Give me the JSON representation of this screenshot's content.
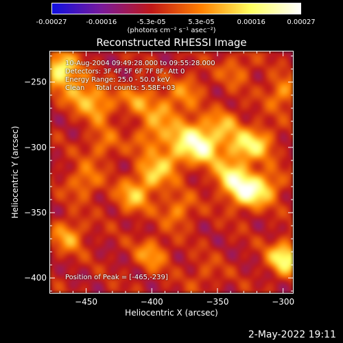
{
  "chart_data": {
    "type": "heatmap",
    "title": "Reconstructed RHESSI Image",
    "xlabel": "Heliocentric X (arcsec)",
    "ylabel": "Heliocentric Y (arcsec)",
    "xlim": [
      -478,
      -292
    ],
    "ylim": [
      -412,
      -226
    ],
    "xticks": [
      "-450",
      "-400",
      "-350",
      "-300"
    ],
    "yticks": [
      "-250",
      "-300",
      "-350",
      "-400"
    ],
    "colorbar": {
      "colormap": "hot",
      "range": [
        -0.00027,
        0.00027
      ],
      "tick_labels": [
        "-0.00027",
        "-0.00016",
        "-5.3e-05",
        "5.3e-05",
        "0.00016",
        "0.00027"
      ],
      "units": "(photons cm⁻² s⁻¹ asec⁻²)",
      "colors": [
        "#1010e0",
        "#7a1a9a",
        "#c01818",
        "#ff8000",
        "#ffff60",
        "#ffffff"
      ]
    },
    "peak": [
      -465,
      -239
    ],
    "sources": [
      {
        "x": -470,
        "y": -240,
        "value": 0.00025
      },
      {
        "x": -455,
        "y": -258,
        "value": 0.00014
      },
      {
        "x": -440,
        "y": -268,
        "value": 0.00014
      },
      {
        "x": -410,
        "y": -262,
        "value": 0.00012
      },
      {
        "x": -390,
        "y": -272,
        "value": 0.00013
      },
      {
        "x": -372,
        "y": -290,
        "value": 0.00018
      },
      {
        "x": -360,
        "y": -300,
        "value": 0.00024
      },
      {
        "x": -345,
        "y": -282,
        "value": 0.00013
      },
      {
        "x": -332,
        "y": -300,
        "value": 0.00014
      },
      {
        "x": -318,
        "y": -296,
        "value": 0.00015
      },
      {
        "x": -340,
        "y": -322,
        "value": 0.00019
      },
      {
        "x": -328,
        "y": -334,
        "value": 0.00025
      },
      {
        "x": -312,
        "y": -330,
        "value": 0.00014
      },
      {
        "x": -400,
        "y": -322,
        "value": 0.00016
      },
      {
        "x": -415,
        "y": -338,
        "value": 0.00015
      },
      {
        "x": -385,
        "y": -308,
        "value": 0.00014
      },
      {
        "x": -402,
        "y": -292,
        "value": 0.00012
      },
      {
        "x": -380,
        "y": -348,
        "value": 0.00012
      },
      {
        "x": -400,
        "y": -382,
        "value": 0.00013
      },
      {
        "x": -452,
        "y": -326,
        "value": 0.00012
      },
      {
        "x": -464,
        "y": -368,
        "value": 0.00014
      },
      {
        "x": -298,
        "y": -385,
        "value": 0.00024
      },
      {
        "x": -300,
        "y": -258,
        "value": 0.00013
      },
      {
        "x": -335,
        "y": -240,
        "value": 9e-05
      },
      {
        "x": -372,
        "y": -255,
        "value": 0.0001
      },
      {
        "x": -360,
        "y": -398,
        "value": 6e-05
      },
      {
        "x": -438,
        "y": -298,
        "value": 0.0001
      }
    ]
  },
  "annotations": {
    "time_range": "10-Aug-2004 09:49:28.000 to 09:55:28.000",
    "detectors": "Detectors: 3F 4F 5F 6F 7F 8F, Att 0",
    "energy": "Energy Range: 25.0 - 50.0 keV",
    "method": "Clean     Total counts: 5.58E+03",
    "peak_label": "Position of Peak = [-465,-239]"
  },
  "footer": {
    "date": "2-May-2022 19:11"
  }
}
